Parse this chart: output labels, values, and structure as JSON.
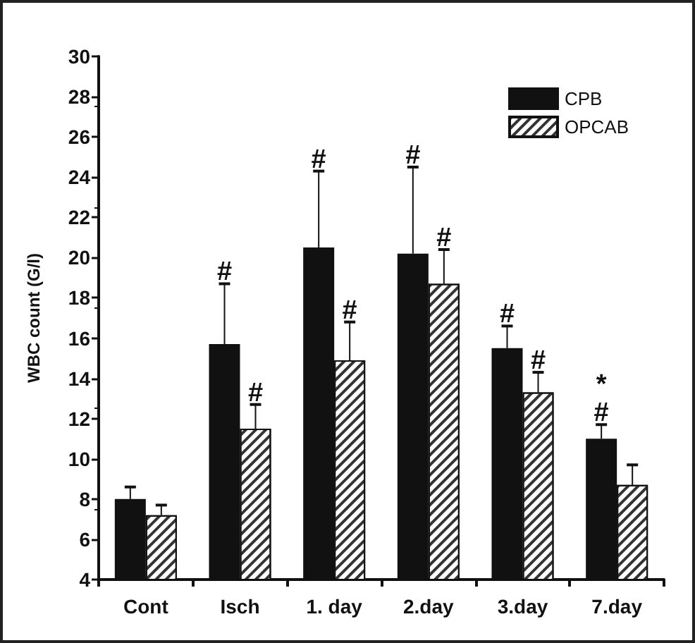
{
  "chart_data": {
    "type": "bar",
    "ylabel": "WBC count (G/l)",
    "categories": [
      "Cont",
      "Isch",
      "1. day",
      "2.day",
      "3.day",
      "7.day"
    ],
    "series": [
      {
        "name": "CPB",
        "color": "#111111",
        "values": [
          8.0,
          15.7,
          20.5,
          20.2,
          15.5,
          11.0
        ],
        "errors": [
          [
            8.0,
            8.6
          ],
          [
            15.7,
            18.7
          ],
          [
            20.5,
            24.3
          ],
          [
            20.2,
            24.5
          ],
          [
            15.5,
            16.6
          ],
          [
            11.0,
            11.7
          ]
        ],
        "value_labels": [
          null,
          "#",
          "#",
          "#",
          "#",
          "*\n#"
        ]
      },
      {
        "name": "OPCAB",
        "color": "#ffffff",
        "values": [
          7.2,
          11.5,
          14.9,
          18.7,
          13.3,
          8.7
        ],
        "errors": [
          [
            7.2,
            7.7
          ],
          [
            11.5,
            12.7
          ],
          [
            14.9,
            16.8
          ],
          [
            18.7,
            20.4
          ],
          [
            13.3,
            14.3
          ],
          [
            8.7,
            9.7
          ]
        ],
        "value_labels": [
          null,
          "#",
          "#",
          "#",
          "#",
          null
        ]
      }
    ],
    "ylim": [
      4,
      30
    ],
    "yticks": [
      4,
      6,
      8,
      10,
      12,
      14,
      16,
      18,
      20,
      22,
      24,
      26,
      28,
      30
    ],
    "grid": false,
    "legend": "top right"
  }
}
